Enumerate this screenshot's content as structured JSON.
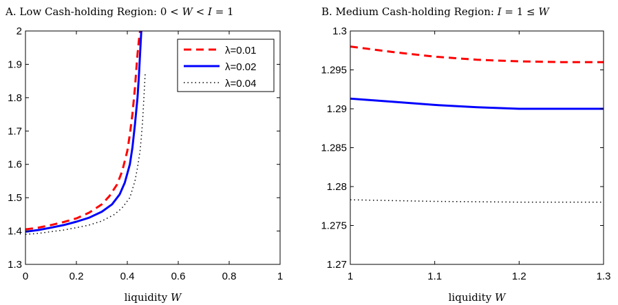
{
  "chart_data": [
    {
      "type": "line",
      "title": "A. Low Cash-holding Region: 0 < W < I = 1",
      "xlabel": "liquidity W",
      "ylabel": "",
      "xlim": [
        0,
        1
      ],
      "ylim": [
        1.3,
        2
      ],
      "xticks": [
        "0",
        "0.2",
        "0.4",
        "0.6",
        "0.8",
        "1"
      ],
      "yticks": [
        "1.3",
        "1.4",
        "1.5",
        "1.6",
        "1.7",
        "1.8",
        "1.9",
        "2"
      ],
      "grid": false,
      "legend": "top-right",
      "series": [
        {
          "name": "λ=0.01",
          "color": "#ff0000",
          "style": "dashed",
          "x": [
            0,
            0.05,
            0.1,
            0.15,
            0.2,
            0.25,
            0.3,
            0.33,
            0.36,
            0.38,
            0.4,
            0.41,
            0.42,
            0.43,
            0.435,
            0.44,
            0.445,
            0.45
          ],
          "y": [
            1.405,
            1.41,
            1.418,
            1.427,
            1.438,
            1.455,
            1.48,
            1.505,
            1.54,
            1.58,
            1.64,
            1.69,
            1.75,
            1.83,
            1.88,
            1.93,
            1.97,
            2.0
          ]
        },
        {
          "name": "λ=0.02",
          "color": "#0000ff",
          "style": "solid",
          "x": [
            0,
            0.05,
            0.1,
            0.15,
            0.2,
            0.25,
            0.3,
            0.34,
            0.37,
            0.39,
            0.41,
            0.42,
            0.43,
            0.44,
            0.445,
            0.45,
            0.455
          ],
          "y": [
            1.398,
            1.403,
            1.41,
            1.418,
            1.428,
            1.44,
            1.458,
            1.48,
            1.51,
            1.545,
            1.6,
            1.65,
            1.72,
            1.8,
            1.86,
            1.93,
            2.0
          ]
        },
        {
          "name": "λ=0.04",
          "color": "#000000",
          "style": "dotted",
          "x": [
            0,
            0.05,
            0.1,
            0.15,
            0.2,
            0.25,
            0.3,
            0.35,
            0.38,
            0.41,
            0.43,
            0.44,
            0.45,
            0.455,
            0.46,
            0.465,
            0.47
          ],
          "y": [
            1.39,
            1.393,
            1.398,
            1.403,
            1.41,
            1.418,
            1.43,
            1.45,
            1.47,
            1.5,
            1.55,
            1.59,
            1.64,
            1.68,
            1.73,
            1.8,
            1.87
          ]
        }
      ]
    },
    {
      "type": "line",
      "title": "B. Medium Cash-holding Region: I = 1 ≤ W",
      "xlabel": "liquidity W",
      "ylabel": "",
      "xlim": [
        1,
        1.3
      ],
      "ylim": [
        1.27,
        1.3
      ],
      "xticks": [
        "1",
        "1.1",
        "1.2",
        "1.3"
      ],
      "yticks": [
        "1.27",
        "1.275",
        "1.28",
        "1.285",
        "1.29",
        "1.295",
        "1.3"
      ],
      "grid": false,
      "series": [
        {
          "name": "λ=0.01",
          "color": "#ff0000",
          "style": "dashed",
          "x": [
            1,
            1.05,
            1.1,
            1.15,
            1.2,
            1.25,
            1.3
          ],
          "y": [
            1.298,
            1.2973,
            1.2967,
            1.2963,
            1.2961,
            1.296,
            1.296
          ]
        },
        {
          "name": "λ=0.02",
          "color": "#0000ff",
          "style": "solid",
          "x": [
            1,
            1.05,
            1.1,
            1.15,
            1.2,
            1.25,
            1.3
          ],
          "y": [
            1.2913,
            1.2909,
            1.2905,
            1.2902,
            1.29,
            1.29,
            1.29
          ]
        },
        {
          "name": "λ=0.04",
          "color": "#000000",
          "style": "dotted",
          "x": [
            1,
            1.1,
            1.2,
            1.3
          ],
          "y": [
            1.2783,
            1.2781,
            1.278,
            1.278
          ]
        }
      ]
    }
  ]
}
